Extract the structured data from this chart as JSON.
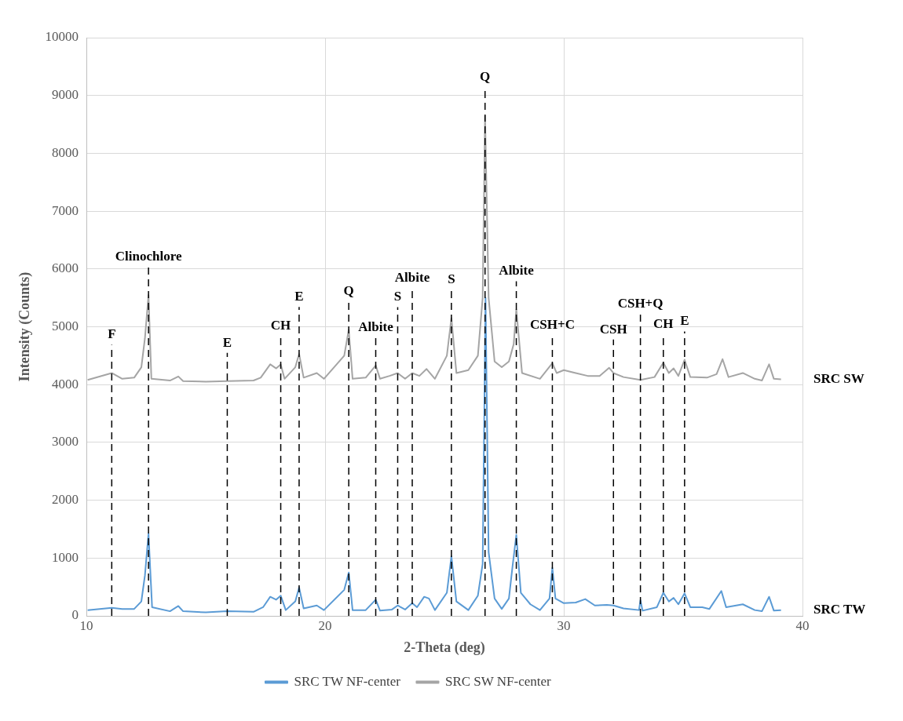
{
  "chart_data": {
    "type": "line",
    "xlabel": "2-Theta (deg)",
    "ylabel": "Intensity (Counts)",
    "xlim": [
      10,
      40
    ],
    "xticks": [
      10,
      20,
      30,
      40
    ],
    "ylim": [
      0,
      10000
    ],
    "yticks": [
      0,
      1000,
      2000,
      3000,
      4000,
      5000,
      6000,
      7000,
      8000,
      9000,
      10000
    ],
    "grid": true,
    "legend": "bottom",
    "marker": "none",
    "line_style": "solid",
    "series": [
      {
        "name": "SRC TW NF-center",
        "color": "#5b9bd5",
        "x": [
          10.05,
          11.06,
          11.5,
          12.0,
          12.3,
          12.45,
          12.6,
          12.75,
          13.5,
          13.85,
          14.05,
          15,
          15.9,
          17,
          17.4,
          17.7,
          17.95,
          18.14,
          18.35,
          18.75,
          18.91,
          19.1,
          19.65,
          19.95,
          20.8,
          20.99,
          21.15,
          21.7,
          22.12,
          22.3,
          22.8,
          23.04,
          23.35,
          23.65,
          23.85,
          24.15,
          24.35,
          24.6,
          25.1,
          25.29,
          25.5,
          26.0,
          26.4,
          26.6,
          26.72,
          26.85,
          27.1,
          27.4,
          27.7,
          27.85,
          28.01,
          28.2,
          28.6,
          29.0,
          29.4,
          29.52,
          29.65,
          30.0,
          30.5,
          30.9,
          31.3,
          31.8,
          32.08,
          32.5,
          33.15,
          33.21,
          33.3,
          33.9,
          34.17,
          34.4,
          34.6,
          34.8,
          35.06,
          35.3,
          35.8,
          36.1,
          36.6,
          36.8,
          37.5,
          38.0,
          38.3,
          38.6,
          38.8,
          39.1
        ],
        "values": [
          100,
          140,
          120,
          120,
          250,
          700,
          1420,
          150,
          80,
          170,
          80,
          60,
          80,
          70,
          150,
          330,
          280,
          350,
          100,
          250,
          490,
          130,
          180,
          100,
          450,
          750,
          100,
          100,
          280,
          90,
          110,
          180,
          110,
          220,
          150,
          330,
          300,
          100,
          400,
          1030,
          250,
          100,
          350,
          900,
          5500,
          1100,
          300,
          120,
          300,
          850,
          1400,
          400,
          200,
          100,
          300,
          830,
          300,
          220,
          230,
          290,
          180,
          190,
          180,
          130,
          100,
          270,
          90,
          150,
          400,
          250,
          310,
          200,
          390,
          150,
          150,
          120,
          430,
          150,
          200,
          100,
          80,
          330,
          90,
          100
        ]
      },
      {
        "name": "SRC SW NF-center",
        "color": "#a5a5a5",
        "x": [
          10.05,
          11.06,
          11.5,
          12.0,
          12.3,
          12.45,
          12.6,
          12.72,
          13.5,
          13.85,
          14.05,
          15,
          15.9,
          17,
          17.3,
          17.7,
          17.95,
          18.14,
          18.3,
          18.75,
          18.91,
          19.1,
          19.65,
          19.95,
          20.8,
          20.99,
          21.15,
          21.7,
          22.12,
          22.3,
          22.7,
          23.04,
          23.35,
          23.65,
          23.95,
          24.25,
          24.6,
          25.1,
          25.29,
          25.5,
          26.0,
          26.4,
          26.6,
          26.7,
          26.85,
          27.1,
          27.4,
          27.7,
          27.9,
          28.01,
          28.25,
          29.0,
          29.52,
          29.7,
          30.0,
          30.5,
          31.0,
          31.5,
          31.9,
          32.08,
          32.5,
          33.21,
          33.8,
          34.17,
          34.4,
          34.6,
          34.8,
          35.06,
          35.3,
          36.0,
          36.4,
          36.65,
          36.9,
          37.5,
          38.0,
          38.3,
          38.6,
          38.8,
          39.1
        ],
        "values": [
          4080,
          4200,
          4100,
          4120,
          4300,
          4800,
          5550,
          4100,
          4070,
          4140,
          4060,
          4050,
          4060,
          4070,
          4120,
          4350,
          4280,
          4350,
          4100,
          4300,
          4530,
          4120,
          4200,
          4100,
          4500,
          4950,
          4100,
          4120,
          4330,
          4100,
          4150,
          4200,
          4100,
          4200,
          4150,
          4270,
          4100,
          4500,
          5150,
          4200,
          4250,
          4500,
          5500,
          8650,
          5500,
          4400,
          4300,
          4400,
          4700,
          5300,
          4200,
          4100,
          4370,
          4200,
          4250,
          4200,
          4150,
          4150,
          4290,
          4200,
          4130,
          4080,
          4130,
          4380,
          4200,
          4280,
          4150,
          4430,
          4130,
          4120,
          4180,
          4440,
          4130,
          4200,
          4100,
          4070,
          4350,
          4100,
          4090
        ]
      }
    ],
    "annotations": [
      "SRC TW",
      "SRC SW"
    ],
    "ref_lines": [
      {
        "axis": "x",
        "value": 11.06,
        "label": "F",
        "color": "#000000",
        "line_style": "dashed"
      },
      {
        "axis": "x",
        "value": 12.6,
        "label": "Clinochlore",
        "color": "#000000",
        "line_style": "dashed"
      },
      {
        "axis": "x",
        "value": 15.9,
        "label": "E",
        "color": "#000000",
        "line_style": "dashed"
      },
      {
        "axis": "x",
        "value": 18.14,
        "label": "CH",
        "color": "#000000",
        "line_style": "dashed"
      },
      {
        "axis": "x",
        "value": 18.91,
        "label": "E",
        "color": "#000000",
        "line_style": "dashed"
      },
      {
        "axis": "x",
        "value": 20.99,
        "label": "Q",
        "color": "#000000",
        "line_style": "dashed"
      },
      {
        "axis": "x",
        "value": 22.12,
        "label": "Albite",
        "color": "#000000",
        "line_style": "dashed"
      },
      {
        "axis": "x",
        "value": 23.04,
        "label": "S",
        "color": "#000000",
        "line_style": "dashed"
      },
      {
        "axis": "x",
        "value": 23.65,
        "label": "Albite",
        "color": "#000000",
        "line_style": "dashed"
      },
      {
        "axis": "x",
        "value": 25.29,
        "label": "S",
        "color": "#000000",
        "line_style": "dashed"
      },
      {
        "axis": "x",
        "value": 26.7,
        "label": "Q",
        "color": "#000000",
        "line_style": "dashed"
      },
      {
        "axis": "x",
        "value": 28.01,
        "label": "Albite",
        "color": "#000000",
        "line_style": "dashed"
      },
      {
        "axis": "x",
        "value": 29.52,
        "label": "CSH+C",
        "color": "#000000",
        "line_style": "dashed"
      },
      {
        "axis": "x",
        "value": 32.08,
        "label": "CSH",
        "color": "#000000",
        "line_style": "dashed"
      },
      {
        "axis": "x",
        "value": 33.21,
        "label": "CSH+Q",
        "color": "#000000",
        "line_style": "dashed"
      },
      {
        "axis": "x",
        "value": 34.17,
        "label": "CH",
        "color": "#000000",
        "line_style": "dashed"
      },
      {
        "axis": "x",
        "value": 35.06,
        "label": "E",
        "color": "#000000",
        "line_style": "dashed"
      }
    ]
  }
}
